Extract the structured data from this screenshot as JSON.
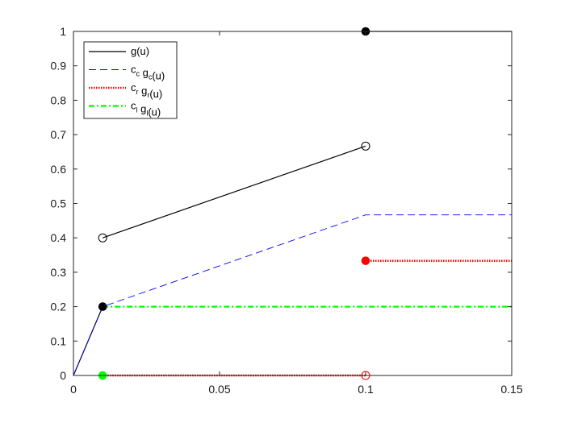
{
  "chart_data": {
    "type": "line",
    "title": "",
    "xlabel": "",
    "ylabel": "",
    "xlim": [
      0,
      0.15
    ],
    "ylim": [
      0,
      1
    ],
    "x_ticks": [
      0,
      0.05,
      0.1,
      0.15
    ],
    "x_tick_labels": [
      "0",
      "0.05",
      "0.1",
      "0.15"
    ],
    "y_ticks": [
      0,
      0.1,
      0.2,
      0.3,
      0.4,
      0.5,
      0.6,
      0.7,
      0.8,
      0.9,
      1
    ],
    "y_tick_labels": [
      "0",
      "0.1",
      "0.2",
      "0.3",
      "0.4",
      "0.5",
      "0.6",
      "0.7",
      "0.8",
      "0.9",
      "1"
    ],
    "grid": false,
    "legend_position": "top-left",
    "series": [
      {
        "name": "g(u)",
        "legend": {
          "main": "g(u)",
          "parts": []
        },
        "color": "#000000",
        "dash": "solid",
        "segments": [
          [
            [
              0,
              0
            ],
            [
              0.01,
              0.2
            ]
          ],
          [
            [
              0.01,
              0.4
            ],
            [
              0.1,
              0.6667
            ]
          ],
          [
            [
              0.1,
              1
            ],
            [
              0.15,
              1
            ]
          ]
        ]
      },
      {
        "name": "c_c g_c(u)",
        "legend": {
          "main": "",
          "parts": [
            [
              "c",
              "c"
            ],
            [
              " g",
              "c"
            ],
            [
              "(u)",
              ""
            ]
          ]
        },
        "color": "#0000ff",
        "dash": "dashed",
        "segments": [
          [
            [
              0,
              0
            ],
            [
              0.01,
              0.2
            ],
            [
              0.1,
              0.4667
            ],
            [
              0.15,
              0.4667
            ]
          ]
        ]
      },
      {
        "name": "c_r g_r(u)",
        "legend": {
          "main": "",
          "parts": [
            [
              "c",
              "r"
            ],
            [
              " g",
              "r"
            ],
            [
              "(u)",
              ""
            ]
          ]
        },
        "color": "#ff0000",
        "dash": "dotted",
        "segments": [
          [
            [
              0.01,
              0
            ],
            [
              0.1,
              0
            ]
          ],
          [
            [
              0.1,
              0.3333
            ],
            [
              0.15,
              0.3333
            ]
          ]
        ]
      },
      {
        "name": "c_l g_l(u)",
        "legend": {
          "main": "",
          "parts": [
            [
              "c",
              "l"
            ],
            [
              " g",
              "l"
            ],
            [
              "(u)",
              ""
            ]
          ]
        },
        "color": "#00ff00",
        "dash": "dashdot",
        "segments": [
          [
            [
              0.01,
              0.2
            ],
            [
              0.15,
              0.2
            ]
          ]
        ]
      }
    ],
    "markers": [
      {
        "x": 0.01,
        "y": 0.4,
        "filled": false,
        "color": "#000000"
      },
      {
        "x": 0.1,
        "y": 0.6667,
        "filled": false,
        "color": "#000000"
      },
      {
        "x": 0.1,
        "y": 1,
        "filled": true,
        "color": "#000000"
      },
      {
        "x": 0.01,
        "y": 0.2,
        "filled": true,
        "color": "#000000"
      },
      {
        "x": 0.1,
        "y": 0.3333,
        "filled": true,
        "color": "#ff0000"
      },
      {
        "x": 0.1,
        "y": 0,
        "filled": false,
        "color": "#ff0000"
      },
      {
        "x": 0.01,
        "y": 0,
        "filled": true,
        "color": "#00ff00"
      }
    ]
  }
}
